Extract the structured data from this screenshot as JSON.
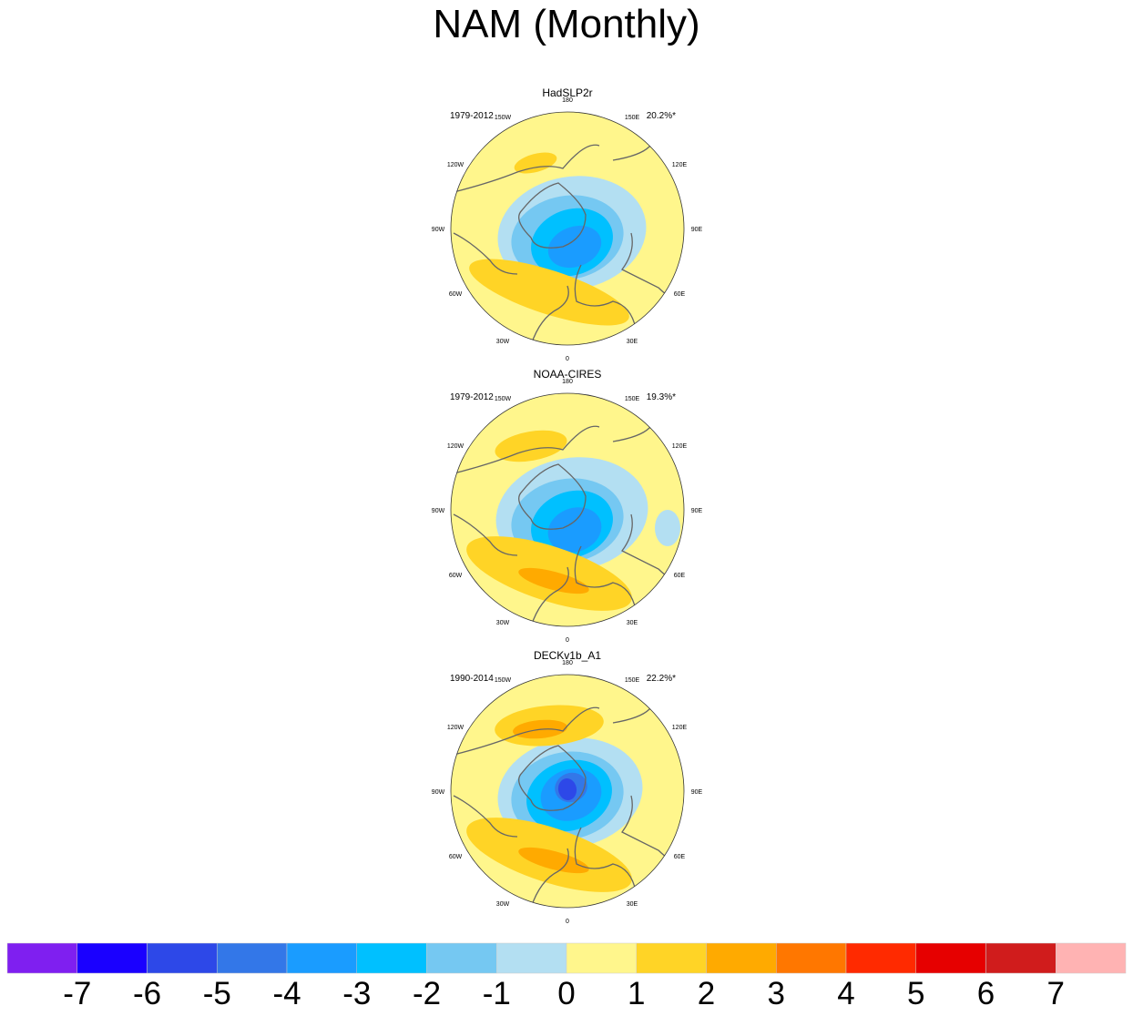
{
  "title": "NAM (Monthly)",
  "panels": [
    {
      "name": "HadSLP2r",
      "period": "1979-2012",
      "variance": "20.2%*"
    },
    {
      "name": "NOAA-CIRES",
      "period": "1979-2012",
      "variance": "19.3%*"
    },
    {
      "name": "DECKv1b_A1",
      "period": "1990-2014",
      "variance": "22.2%*"
    }
  ],
  "lon_labels": [
    "180",
    "150E",
    "120E",
    "90E",
    "60E",
    "30E",
    "0",
    "30W",
    "60W",
    "90W",
    "120W",
    "150W"
  ],
  "colorbar": {
    "labels": [
      "-7",
      "-6",
      "-5",
      "-4",
      "-3",
      "-2",
      "-1",
      "0",
      "1",
      "2",
      "3",
      "4",
      "5",
      "6",
      "7"
    ],
    "colors": [
      "#7f1ff0",
      "#1a00ff",
      "#2d48e8",
      "#3377e8",
      "#1a9cff",
      "#00c0ff",
      "#75c8f2",
      "#b3dff2",
      "#fff68c",
      "#ffd426",
      "#ffaa00",
      "#ff7700",
      "#ff2a00",
      "#e60000",
      "#d01c1c",
      "#ffb3b3"
    ]
  }
}
